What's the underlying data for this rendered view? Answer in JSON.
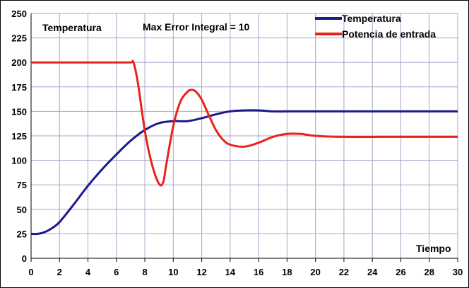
{
  "chart_data": {
    "type": "line",
    "title": "",
    "xlabel": "Tiempo",
    "ylabel": "Temperatura",
    "annotation": "Max Error Integral = 10",
    "xlim": [
      0,
      30
    ],
    "ylim": [
      0,
      250
    ],
    "xticks": [
      0,
      2,
      4,
      6,
      8,
      10,
      12,
      14,
      16,
      18,
      20,
      22,
      24,
      26,
      28,
      30
    ],
    "yticks": [
      0,
      25,
      50,
      75,
      100,
      125,
      150,
      175,
      200,
      225,
      250
    ],
    "grid": true,
    "legend_position": "top-right",
    "series": [
      {
        "name": "Temperatura",
        "color": "#1a1a8c",
        "x": [
          0,
          0.5,
          1,
          1.5,
          2,
          3,
          4,
          5,
          6,
          7,
          8,
          9,
          10,
          11,
          12,
          13,
          14,
          15,
          16,
          17,
          18,
          20,
          22,
          25,
          30
        ],
        "y": [
          25,
          25,
          27,
          31,
          37,
          55,
          74,
          91,
          106,
          120,
          131,
          138,
          140,
          140,
          143,
          147,
          150,
          151,
          151,
          150,
          150,
          150,
          150,
          150,
          150
        ]
      },
      {
        "name": "Potencia de entrada",
        "color": "#e8231a",
        "x": [
          0,
          2,
          4,
          6,
          7,
          7.2,
          7.5,
          8,
          8.5,
          9,
          9.3,
          9.5,
          10,
          10.5,
          11,
          11.3,
          11.6,
          12,
          12.5,
          13,
          13.5,
          14,
          15,
          16,
          17,
          18,
          19,
          20,
          22,
          25,
          30
        ],
        "y": [
          200,
          200,
          200,
          200,
          200,
          200,
          180,
          130,
          96,
          76,
          78,
          95,
          135,
          160,
          170,
          172,
          170,
          162,
          146,
          131,
          121,
          116,
          114,
          118,
          124,
          127,
          127,
          125,
          124,
          124,
          124
        ]
      }
    ]
  }
}
